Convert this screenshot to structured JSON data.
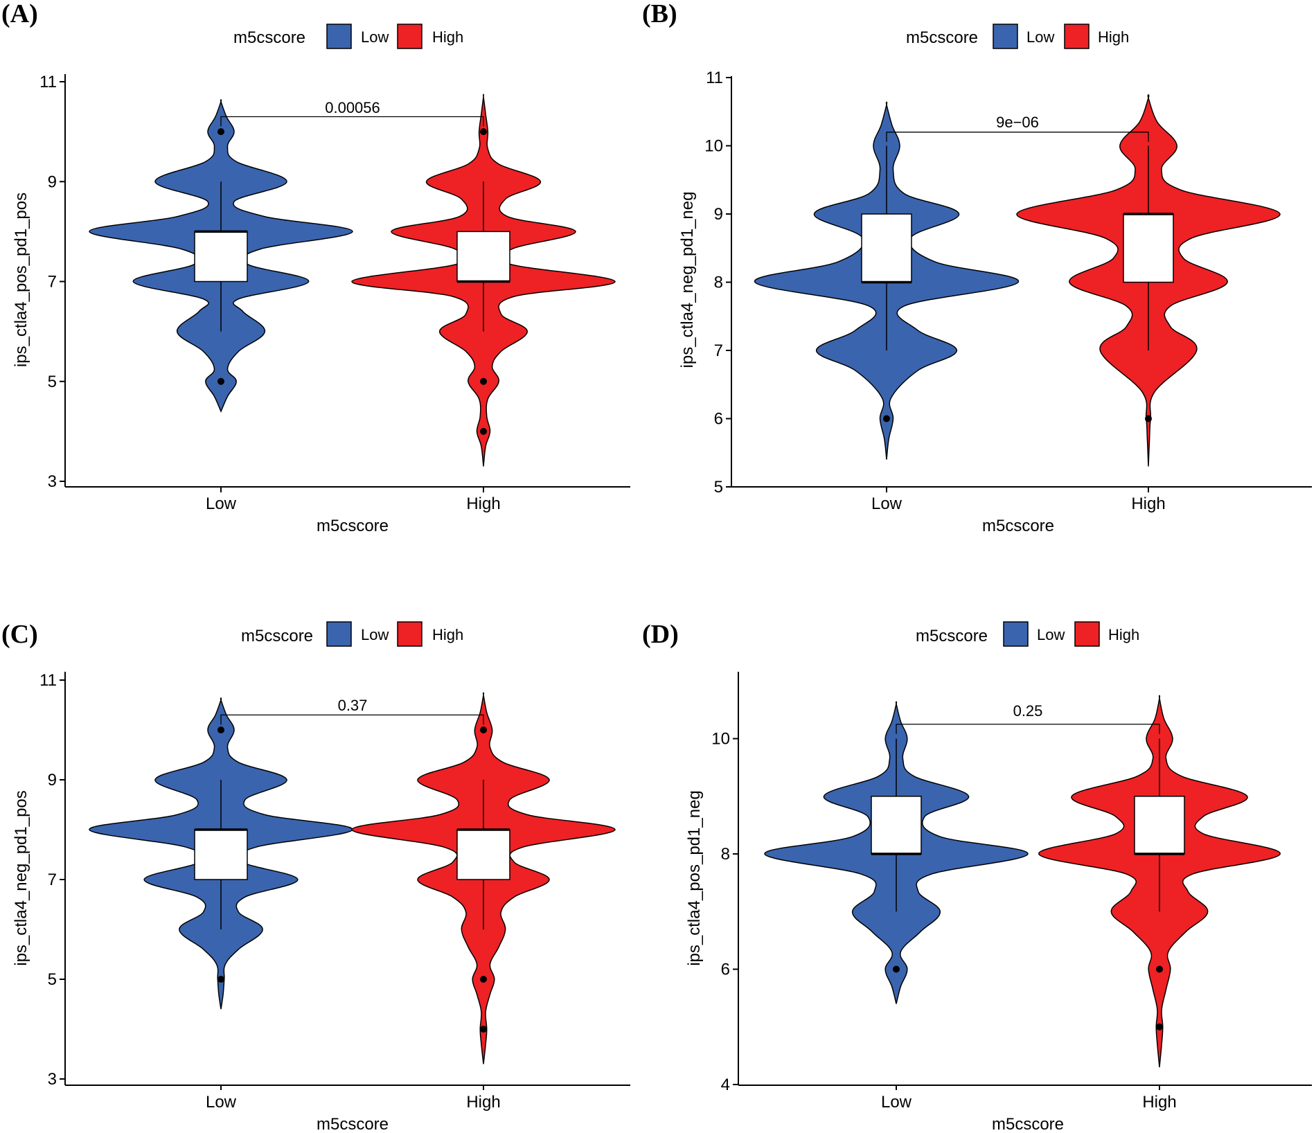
{
  "figure": {
    "panels": [
      "A",
      "B",
      "C",
      "D"
    ]
  },
  "chart_data": [
    {
      "panel_label": "(A)",
      "type": "violin",
      "legend_title": "m5cscore",
      "legend": [
        {
          "name": "Low",
          "color": "#3A64AE"
        },
        {
          "name": "High",
          "color": "#EE2124"
        }
      ],
      "categories": [
        "Low",
        "High"
      ],
      "xlabel": "m5cscore",
      "ylabel": "ips_ctla4_pos_pd1_pos",
      "ylim": [
        3,
        11
      ],
      "yticks": [
        3,
        5,
        7,
        9,
        11
      ],
      "ytick_labels": [
        "3",
        "5",
        "7",
        "9",
        "11"
      ],
      "pvalue": "0.00056",
      "pvalue_y": 10.3,
      "series": [
        {
          "name": "Low",
          "color": "#3A64AE",
          "range": [
            4.4,
            10.6
          ],
          "density": [
            [
              4.4,
              0
            ],
            [
              4.7,
              0.03
            ],
            [
              5.0,
              0.07
            ],
            [
              5.25,
              0.03
            ],
            [
              5.6,
              0.08
            ],
            [
              6.0,
              0.2
            ],
            [
              6.4,
              0.1
            ],
            [
              6.65,
              0.08
            ],
            [
              7.0,
              0.4
            ],
            [
              7.35,
              0.12
            ],
            [
              7.65,
              0.18
            ],
            [
              8.0,
              0.6
            ],
            [
              8.3,
              0.2
            ],
            [
              8.6,
              0.06
            ],
            [
              9.0,
              0.3
            ],
            [
              9.4,
              0.07
            ],
            [
              9.7,
              0.03
            ],
            [
              10.0,
              0.06
            ],
            [
              10.3,
              0.025
            ],
            [
              10.6,
              0
            ]
          ],
          "box": {
            "q1": 7,
            "median": 8,
            "q3": 8,
            "whisker_low": 6,
            "whisker_high": 9
          },
          "outliers": [
            5,
            10
          ]
        },
        {
          "name": "High",
          "color": "#EE2124",
          "range": [
            3.3,
            10.7
          ],
          "density": [
            [
              3.3,
              0
            ],
            [
              3.7,
              0.01
            ],
            [
              4.0,
              0.03
            ],
            [
              4.3,
              0.015
            ],
            [
              4.65,
              0.02
            ],
            [
              5.0,
              0.07
            ],
            [
              5.3,
              0.04
            ],
            [
              5.6,
              0.08
            ],
            [
              6.0,
              0.2
            ],
            [
              6.35,
              0.08
            ],
            [
              6.7,
              0.14
            ],
            [
              7.0,
              0.6
            ],
            [
              7.35,
              0.12
            ],
            [
              7.65,
              0.13
            ],
            [
              8.0,
              0.42
            ],
            [
              8.3,
              0.11
            ],
            [
              8.65,
              0.1
            ],
            [
              9.0,
              0.26
            ],
            [
              9.35,
              0.07
            ],
            [
              9.65,
              0.02
            ],
            [
              10.0,
              0.02
            ],
            [
              10.35,
              0.01
            ],
            [
              10.7,
              0
            ]
          ],
          "box": {
            "q1": 7,
            "median": 7,
            "q3": 8,
            "whisker_low": 6,
            "whisker_high": 9
          },
          "outliers": [
            4,
            5,
            10
          ]
        }
      ]
    },
    {
      "panel_label": "(B)",
      "type": "violin",
      "legend_title": "m5cscore",
      "legend": [
        {
          "name": "Low",
          "color": "#3A64AE"
        },
        {
          "name": "High",
          "color": "#EE2124"
        }
      ],
      "categories": [
        "Low",
        "High"
      ],
      "xlabel": "m5cscore",
      "ylabel": "ips_ctla4_neg_pd1_neg",
      "ylim": [
        5,
        11
      ],
      "yticks": [
        5,
        6,
        7,
        8,
        9,
        10,
        11
      ],
      "ytick_labels": [
        "5",
        "6",
        "7",
        "8",
        "9",
        "10",
        "11"
      ],
      "pvalue": "9e−06",
      "pvalue_y": 10.2,
      "series": [
        {
          "name": "Low",
          "color": "#3A64AE",
          "range": [
            5.4,
            10.6
          ],
          "density": [
            [
              5.4,
              0
            ],
            [
              5.7,
              0.01
            ],
            [
              6.0,
              0.03
            ],
            [
              6.3,
              0.02
            ],
            [
              6.7,
              0.14
            ],
            [
              7.0,
              0.32
            ],
            [
              7.3,
              0.14
            ],
            [
              7.65,
              0.08
            ],
            [
              8.0,
              0.6
            ],
            [
              8.3,
              0.22
            ],
            [
              8.65,
              0.11
            ],
            [
              9.0,
              0.33
            ],
            [
              9.3,
              0.08
            ],
            [
              9.65,
              0.03
            ],
            [
              10.0,
              0.06
            ],
            [
              10.3,
              0.025
            ],
            [
              10.6,
              0
            ]
          ],
          "box": {
            "q1": 8,
            "median": 8,
            "q3": 9,
            "whisker_low": 7,
            "whisker_high": 10
          },
          "outliers": [
            6
          ]
        },
        {
          "name": "High",
          "color": "#EE2124",
          "range": [
            5.3,
            10.7
          ],
          "density": [
            [
              5.3,
              0
            ],
            [
              5.7,
              0.005
            ],
            [
              6.0,
              0.01
            ],
            [
              6.4,
              0.03
            ],
            [
              7.0,
              0.22
            ],
            [
              7.35,
              0.1
            ],
            [
              7.65,
              0.1
            ],
            [
              8.0,
              0.36
            ],
            [
              8.35,
              0.16
            ],
            [
              8.65,
              0.2
            ],
            [
              9.0,
              0.6
            ],
            [
              9.35,
              0.15
            ],
            [
              9.65,
              0.06
            ],
            [
              10.0,
              0.13
            ],
            [
              10.35,
              0.04
            ],
            [
              10.7,
              0
            ]
          ],
          "box": {
            "q1": 8,
            "median": 9,
            "q3": 9,
            "whisker_low": 7,
            "whisker_high": 10
          },
          "outliers": [
            6
          ]
        }
      ]
    },
    {
      "panel_label": "(C)",
      "type": "violin",
      "legend_title": "m5cscore",
      "legend": [
        {
          "name": "Low",
          "color": "#3A64AE"
        },
        {
          "name": "High",
          "color": "#EE2124"
        }
      ],
      "categories": [
        "Low",
        "High"
      ],
      "xlabel": "m5cscore",
      "ylabel": "ips_ctla4_neg_pd1_pos",
      "ylim": [
        3,
        11
      ],
      "yticks": [
        3,
        5,
        7,
        9,
        11
      ],
      "ytick_labels": [
        "3",
        "5",
        "7",
        "9",
        "11"
      ],
      "pvalue": "0.37",
      "pvalue_y": 10.3,
      "series": [
        {
          "name": "Low",
          "color": "#3A64AE",
          "range": [
            4.4,
            10.6
          ],
          "density": [
            [
              4.4,
              0
            ],
            [
              4.7,
              0.01
            ],
            [
              5.0,
              0.015
            ],
            [
              5.3,
              0.02
            ],
            [
              5.6,
              0.08
            ],
            [
              6.0,
              0.19
            ],
            [
              6.35,
              0.08
            ],
            [
              6.65,
              0.11
            ],
            [
              7.0,
              0.35
            ],
            [
              7.35,
              0.1
            ],
            [
              7.65,
              0.16
            ],
            [
              8.0,
              0.6
            ],
            [
              8.3,
              0.2
            ],
            [
              8.6,
              0.11
            ],
            [
              9.0,
              0.3
            ],
            [
              9.35,
              0.08
            ],
            [
              9.65,
              0.03
            ],
            [
              10.0,
              0.06
            ],
            [
              10.3,
              0.025
            ],
            [
              10.6,
              0
            ]
          ],
          "box": {
            "q1": 7,
            "median": 8,
            "q3": 8,
            "whisker_low": 6,
            "whisker_high": 9
          },
          "outliers": [
            5,
            10
          ]
        },
        {
          "name": "High",
          "color": "#EE2124",
          "range": [
            3.3,
            10.7
          ],
          "density": [
            [
              3.3,
              0
            ],
            [
              3.7,
              0.01
            ],
            [
              4.0,
              0.015
            ],
            [
              4.35,
              0.01
            ],
            [
              4.7,
              0.03
            ],
            [
              5.0,
              0.05
            ],
            [
              5.3,
              0.03
            ],
            [
              5.65,
              0.07
            ],
            [
              6.0,
              0.1
            ],
            [
              6.35,
              0.08
            ],
            [
              6.65,
              0.14
            ],
            [
              7.0,
              0.3
            ],
            [
              7.35,
              0.14
            ],
            [
              7.65,
              0.18
            ],
            [
              8.0,
              0.6
            ],
            [
              8.3,
              0.2
            ],
            [
              8.6,
              0.12
            ],
            [
              9.0,
              0.3
            ],
            [
              9.35,
              0.09
            ],
            [
              9.65,
              0.03
            ],
            [
              10.0,
              0.04
            ],
            [
              10.35,
              0.015
            ],
            [
              10.7,
              0
            ]
          ],
          "box": {
            "q1": 7,
            "median": 8,
            "q3": 8,
            "whisker_low": 6,
            "whisker_high": 9
          },
          "outliers": [
            4,
            5,
            10
          ]
        }
      ]
    },
    {
      "panel_label": "(D)",
      "type": "violin",
      "legend_title": "m5cscore",
      "legend": [
        {
          "name": "Low",
          "color": "#3A64AE"
        },
        {
          "name": "High",
          "color": "#EE2124"
        }
      ],
      "categories": [
        "Low",
        "High"
      ],
      "xlabel": "m5cscore",
      "ylabel": "ips_ctla4_pos_pd1_neg",
      "ylim": [
        4,
        11.1
      ],
      "yticks": [
        4,
        6,
        8,
        10
      ],
      "ytick_labels": [
        "4",
        "6",
        "8",
        "10"
      ],
      "pvalue": "0.25",
      "pvalue_y": 10.25,
      "series": [
        {
          "name": "Low",
          "color": "#3A64AE",
          "range": [
            5.4,
            10.6
          ],
          "density": [
            [
              5.4,
              0
            ],
            [
              5.7,
              0.02
            ],
            [
              6.0,
              0.05
            ],
            [
              6.3,
              0.02
            ],
            [
              6.65,
              0.11
            ],
            [
              7.0,
              0.2
            ],
            [
              7.35,
              0.1
            ],
            [
              7.65,
              0.16
            ],
            [
              8.0,
              0.6
            ],
            [
              8.3,
              0.2
            ],
            [
              8.65,
              0.13
            ],
            [
              9.0,
              0.33
            ],
            [
              9.35,
              0.08
            ],
            [
              9.65,
              0.03
            ],
            [
              10.0,
              0.05
            ],
            [
              10.3,
              0.02
            ],
            [
              10.6,
              0
            ]
          ],
          "box": {
            "q1": 8,
            "median": 8,
            "q3": 9,
            "whisker_low": 7,
            "whisker_high": 10
          },
          "outliers": [
            6
          ]
        },
        {
          "name": "High",
          "color": "#EE2124",
          "range": [
            4.3,
            10.7
          ],
          "density": [
            [
              4.3,
              0
            ],
            [
              4.7,
              0.01
            ],
            [
              5.0,
              0.015
            ],
            [
              5.3,
              0.01
            ],
            [
              5.65,
              0.03
            ],
            [
              6.0,
              0.05
            ],
            [
              6.3,
              0.04
            ],
            [
              6.65,
              0.12
            ],
            [
              7.0,
              0.22
            ],
            [
              7.35,
              0.13
            ],
            [
              7.65,
              0.15
            ],
            [
              8.0,
              0.55
            ],
            [
              8.35,
              0.2
            ],
            [
              8.65,
              0.2
            ],
            [
              9.0,
              0.4
            ],
            [
              9.35,
              0.1
            ],
            [
              9.65,
              0.03
            ],
            [
              10.0,
              0.06
            ],
            [
              10.35,
              0.02
            ],
            [
              10.7,
              0
            ]
          ],
          "box": {
            "q1": 8,
            "median": 8,
            "q3": 9,
            "whisker_low": 7,
            "whisker_high": 10
          },
          "outliers": [
            5,
            6
          ]
        }
      ]
    }
  ]
}
